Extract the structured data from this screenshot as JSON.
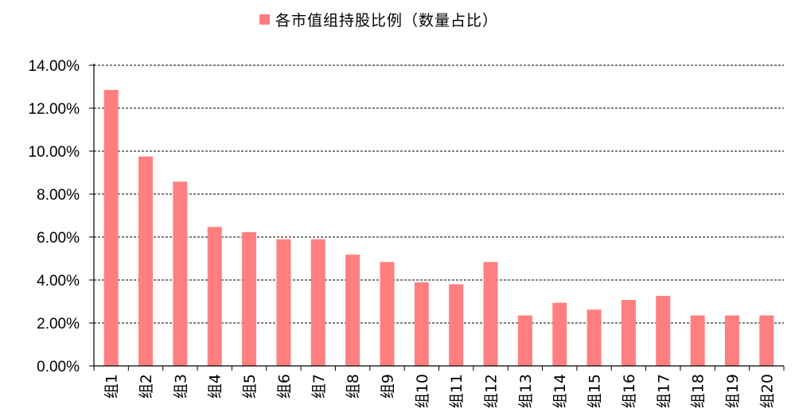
{
  "chart_data": {
    "type": "bar",
    "legend": {
      "position": "top",
      "entries": [
        {
          "name": "各市值组持股比例（数量占比）",
          "color": "#ff7f7f"
        }
      ]
    },
    "categories": [
      "组1",
      "组2",
      "组3",
      "组4",
      "组5",
      "组6",
      "组7",
      "组8",
      "组9",
      "组10",
      "组11",
      "组12",
      "组13",
      "组14",
      "组15",
      "组16",
      "组17",
      "组18",
      "组19",
      "组20"
    ],
    "series": [
      {
        "name": "各市值组持股比例（数量占比）",
        "color": "#ff7f7f",
        "values": [
          12.85,
          9.75,
          8.58,
          6.47,
          6.23,
          5.9,
          5.9,
          5.18,
          4.84,
          3.89,
          3.8,
          4.84,
          2.35,
          2.94,
          2.62,
          3.07,
          3.26,
          2.35,
          2.35,
          2.35
        ]
      }
    ],
    "yaxis": {
      "ticks": [
        "0.00%",
        "2.00%",
        "4.00%",
        "6.00%",
        "8.00%",
        "10.00%",
        "12.00%",
        "14.00%"
      ],
      "ylim": [
        0,
        14
      ],
      "format": "percent-2dp"
    },
    "grid": {
      "horizontal": true,
      "style": "dashed",
      "color": "#000000"
    },
    "xlabel": "",
    "ylabel": "",
    "title": ""
  }
}
